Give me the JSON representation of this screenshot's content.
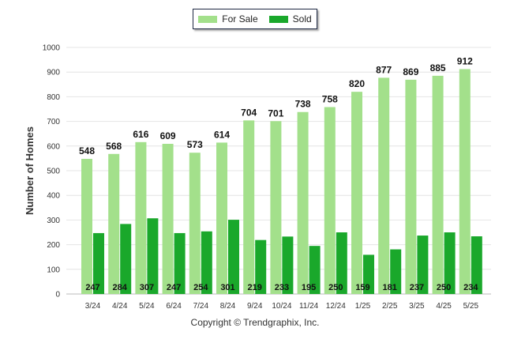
{
  "legend": {
    "items": [
      {
        "label": "For Sale",
        "color": "#a3e08b"
      },
      {
        "label": "Sold",
        "color": "#1aa82b"
      }
    ]
  },
  "footer": {
    "copyright": "Copyright © Trendgraphix, Inc."
  },
  "chart_data": {
    "type": "bar",
    "title": "",
    "xlabel": "",
    "ylabel": "Number of Homes",
    "ylim": [
      0,
      1000
    ],
    "yticks": [
      0,
      100,
      200,
      300,
      400,
      500,
      600,
      700,
      800,
      900,
      1000
    ],
    "grid": true,
    "legend_position": "top-center",
    "categories": [
      "3/24",
      "4/24",
      "5/24",
      "6/24",
      "7/24",
      "8/24",
      "9/24",
      "10/24",
      "11/24",
      "12/24",
      "1/25",
      "2/25",
      "3/25",
      "4/25",
      "5/25"
    ],
    "series": [
      {
        "name": "For Sale",
        "color": "#a3e08b",
        "values": [
          548,
          568,
          616,
          609,
          573,
          614,
          704,
          701,
          738,
          758,
          820,
          877,
          869,
          885,
          912
        ]
      },
      {
        "name": "Sold",
        "color": "#1aa82b",
        "values": [
          247,
          284,
          307,
          247,
          254,
          301,
          219,
          233,
          195,
          250,
          159,
          181,
          237,
          250,
          234
        ]
      }
    ]
  }
}
